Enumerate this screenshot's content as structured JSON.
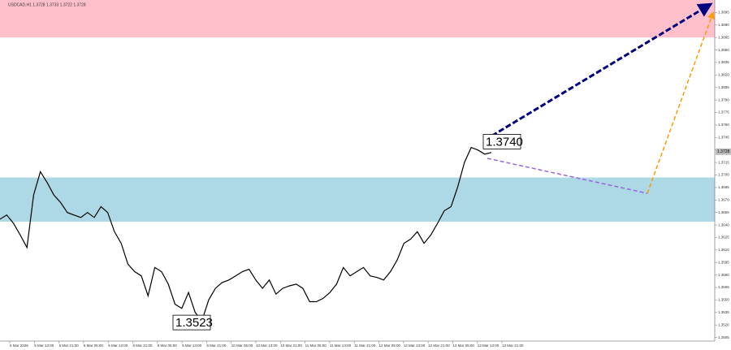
{
  "chart_data": {
    "type": "line",
    "title": "USDCAD,H1 1.3728 1.3733 1.3722 1.3728",
    "values": [
      1.3647,
      1.3652,
      1.3642,
      1.3628,
      1.3613,
      1.3676,
      1.3704,
      1.3691,
      1.3676,
      1.3667,
      1.3655,
      1.3652,
      1.3649,
      1.3655,
      1.3649,
      1.3662,
      1.3655,
      1.3632,
      1.3618,
      1.3593,
      1.3584,
      1.3579,
      1.3555,
      1.3589,
      1.3584,
      1.3569,
      1.3545,
      1.354,
      1.3559,
      1.3535,
      1.3525,
      1.355,
      1.3564,
      1.3571,
      1.3574,
      1.3579,
      1.3584,
      1.3587,
      1.3574,
      1.3564,
      1.3574,
      1.3557,
      1.3564,
      1.3567,
      1.3569,
      1.3564,
      1.3548,
      1.3548,
      1.3552,
      1.3559,
      1.3569,
      1.3589,
      1.3579,
      1.3584,
      1.3589,
      1.3579,
      1.3577,
      1.3574,
      1.3584,
      1.3598,
      1.3618,
      1.3623,
      1.3632,
      1.3618,
      1.3628,
      1.3642,
      1.3657,
      1.3662,
      1.3686,
      1.3715,
      1.3733,
      1.373,
      1.3725,
      1.3727
    ],
    "color": "#000000",
    "x_labels": [
      "5 Mar 2026",
      "5 Mar 13:00",
      "5 Mar 21:00",
      "6 Mar 05:00",
      "6 Mar 13:00",
      "6 Mar 21:00",
      "9 Mar 05:00",
      "9 Mar 13:00",
      "9 Mar 21:00",
      "10 Mar 05:00",
      "10 Mar 13:00",
      "10 Mar 21:00",
      "11 Mar 05:00",
      "11 Mar 13:00",
      "11 Mar 21:00",
      "12 Mar 05:00",
      "12 Mar 13:00",
      "12 Mar 21:00",
      "13 Mar 05:00",
      "13 Mar 13:00",
      "13 Mar 21:00"
    ],
    "ylim": [
      1.349,
      1.391
    ],
    "yticks": [
      1.3505,
      {
        "value": 1.352,
        "label": "1.3520"
      },
      1.3535,
      {
        "value": 1.355,
        "label": "1.3550"
      },
      1.3565,
      {
        "value": 1.358,
        "label": "1.3580"
      },
      1.3595,
      {
        "value": 1.361,
        "label": "1.3610"
      },
      1.3625,
      {
        "value": 1.364,
        "label": "1.3640"
      },
      1.3655,
      {
        "value": 1.367,
        "label": "1.3670"
      },
      1.3685,
      {
        "value": 1.37,
        "label": "1.3700"
      },
      1.3715,
      {
        "value": 1.373,
        "label": "1.3730"
      },
      1.3745,
      {
        "value": 1.376,
        "label": "1.3760"
      },
      1.3775,
      {
        "value": 1.379,
        "label": "1.3790"
      },
      1.3805,
      {
        "value": 1.382,
        "label": "1.3820"
      },
      1.3835,
      {
        "value": 1.385,
        "label": "1.3850"
      },
      1.3865,
      {
        "value": 1.388,
        "label": "1.3880"
      },
      1.3895
    ],
    "current_price": 1.3728,
    "zones": [
      {
        "from": 1.3865,
        "to": 1.391,
        "color": "#ffc0cb"
      },
      {
        "from": 1.3644,
        "to": 1.3697,
        "color": "#add8e6"
      }
    ],
    "annotations": [
      {
        "value": 1.374,
        "label": "1.3740"
      },
      {
        "value": 1.3523,
        "label": "1.3523"
      }
    ],
    "arrows": [
      {
        "from": 1.3742,
        "to": 1.3905,
        "color": "#000080"
      },
      {
        "from": 1.372,
        "to": 1.3678,
        "color": "#9966dd"
      },
      {
        "from": 1.3678,
        "to": 1.3895,
        "color": "#ff9900"
      }
    ]
  }
}
